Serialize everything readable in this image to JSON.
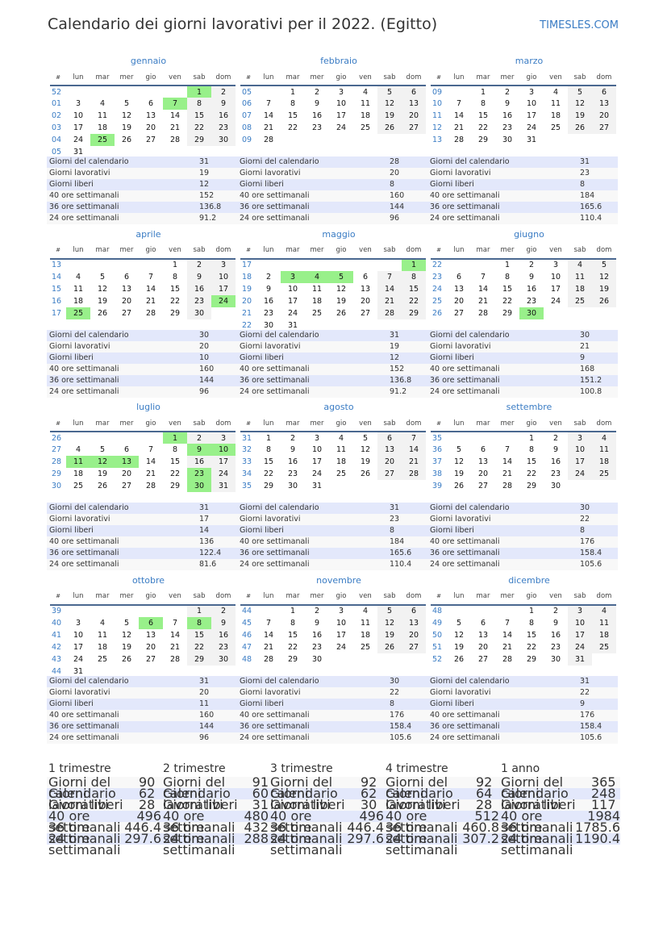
{
  "header": {
    "title": "Calendario dei giorni lavorativi per il 2022. (Egitto)",
    "brand": "TIMESLES.COM"
  },
  "colors": {
    "holiday": "#98f08a",
    "weekend": "#f2f2f2",
    "accent": "#3a7cc4",
    "row_alt": "#e3e8fb"
  },
  "weekday_headers": [
    "#",
    "lun",
    "mar",
    "mer",
    "gio",
    "ven",
    "sab",
    "dom"
  ],
  "stat_labels": [
    "Giorni del calendario",
    "Giorni lavorativi",
    "Giorni liberi",
    "40 ore settimanali",
    "36 ore settimanali",
    "24 ore settimanali"
  ],
  "months": [
    {
      "name": "gennaio",
      "offset": 5,
      "days": 31,
      "weeks": [
        "52",
        "01",
        "02",
        "03",
        "04",
        "05"
      ],
      "holidays": [
        1,
        7,
        25
      ],
      "stats": [
        "31",
        "19",
        "12",
        "152",
        "136.8",
        "91.2"
      ]
    },
    {
      "name": "febbraio",
      "offset": 1,
      "days": 28,
      "weeks": [
        "05",
        "06",
        "07",
        "08",
        "09"
      ],
      "holidays": [],
      "stats": [
        "28",
        "20",
        "8",
        "160",
        "144",
        "96"
      ]
    },
    {
      "name": "marzo",
      "offset": 1,
      "days": 31,
      "weeks": [
        "09",
        "10",
        "11",
        "12",
        "13"
      ],
      "holidays": [],
      "stats": [
        "31",
        "23",
        "8",
        "184",
        "165.6",
        "110.4"
      ]
    },
    {
      "name": "aprile",
      "offset": 4,
      "days": 30,
      "weeks": [
        "13",
        "14",
        "15",
        "16",
        "17"
      ],
      "holidays": [
        24,
        25
      ],
      "stats": [
        "30",
        "20",
        "10",
        "160",
        "144",
        "96"
      ]
    },
    {
      "name": "maggio",
      "offset": 6,
      "days": 31,
      "weeks": [
        "17",
        "18",
        "19",
        "20",
        "21",
        "22"
      ],
      "holidays": [
        1,
        3,
        4,
        5
      ],
      "stats": [
        "31",
        "19",
        "12",
        "152",
        "136.8",
        "91.2"
      ]
    },
    {
      "name": "giugno",
      "offset": 2,
      "days": 30,
      "weeks": [
        "22",
        "23",
        "24",
        "25",
        "26"
      ],
      "holidays": [
        30
      ],
      "stats": [
        "30",
        "21",
        "9",
        "168",
        "151.2",
        "100.8"
      ]
    },
    {
      "name": "luglio",
      "offset": 4,
      "days": 31,
      "weeks": [
        "26",
        "27",
        "28",
        "29",
        "30"
      ],
      "holidays": [
        1,
        9,
        10,
        11,
        12,
        13,
        23,
        30
      ],
      "stats": [
        "31",
        "17",
        "14",
        "136",
        "122.4",
        "81.6"
      ]
    },
    {
      "name": "agosto",
      "offset": 0,
      "days": 31,
      "weeks": [
        "31",
        "32",
        "33",
        "34",
        "35"
      ],
      "holidays": [],
      "stats": [
        "31",
        "23",
        "8",
        "184",
        "165.6",
        "110.4"
      ]
    },
    {
      "name": "settembre",
      "offset": 3,
      "days": 30,
      "weeks": [
        "35",
        "36",
        "37",
        "38",
        "39"
      ],
      "holidays": [],
      "stats": [
        "30",
        "22",
        "8",
        "176",
        "158.4",
        "105.6"
      ]
    },
    {
      "name": "ottobre",
      "offset": 5,
      "days": 31,
      "weeks": [
        "39",
        "40",
        "41",
        "42",
        "43",
        "44"
      ],
      "holidays": [
        6,
        8
      ],
      "stats": [
        "31",
        "20",
        "11",
        "160",
        "144",
        "96"
      ]
    },
    {
      "name": "novembre",
      "offset": 1,
      "days": 30,
      "weeks": [
        "44",
        "45",
        "46",
        "47",
        "48"
      ],
      "holidays": [],
      "stats": [
        "30",
        "22",
        "8",
        "176",
        "158.4",
        "105.6"
      ]
    },
    {
      "name": "dicembre",
      "offset": 3,
      "days": 31,
      "weeks": [
        "48",
        "49",
        "50",
        "51",
        "52"
      ],
      "holidays": [],
      "stats": [
        "31",
        "22",
        "9",
        "176",
        "158.4",
        "105.6"
      ]
    }
  ],
  "summaries": [
    {
      "title": "1 trimestre",
      "stats": [
        "90",
        "62",
        "28",
        "496",
        "446.4",
        "297.6"
      ]
    },
    {
      "title": "2 trimestre",
      "stats": [
        "91",
        "60",
        "31",
        "480",
        "432",
        "288"
      ]
    },
    {
      "title": "3 trimestre",
      "stats": [
        "92",
        "62",
        "30",
        "496",
        "446.4",
        "297.6"
      ]
    },
    {
      "title": "4 trimestre",
      "stats": [
        "92",
        "64",
        "28",
        "512",
        "460.8",
        "307.2"
      ]
    },
    {
      "title": "1 anno",
      "stats": [
        "365",
        "248",
        "117",
        "1984",
        "1785.6",
        "1190.4"
      ]
    }
  ]
}
